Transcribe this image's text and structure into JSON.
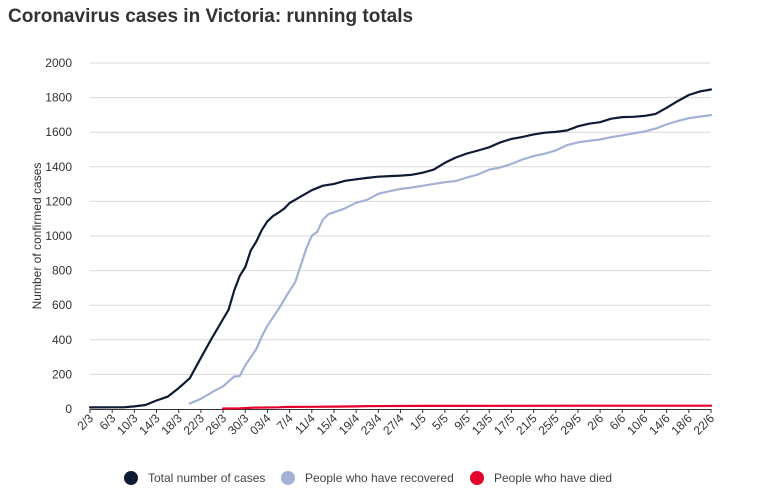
{
  "chart_data": {
    "type": "line",
    "title": "Coronavirus cases in Victoria: running totals",
    "xlabel": "",
    "ylabel": "Number of confirmed cases",
    "ylim": [
      0,
      2000
    ],
    "yticks": [
      0,
      200,
      400,
      600,
      800,
      1000,
      1200,
      1400,
      1600,
      1800,
      2000
    ],
    "xlim": [
      "2/3",
      "22/6"
    ],
    "x_ticks": [
      "2/3",
      "6/3",
      "10/3",
      "14/3",
      "18/3",
      "22/3",
      "26/3",
      "30/3",
      "03/4",
      "7/4",
      "11/4",
      "15/4",
      "19/4",
      "23/4",
      "27/4",
      "1/5",
      "5/5",
      "9/5",
      "13/5",
      "17/5",
      "21/5",
      "25/5",
      "29/5",
      "2/6",
      "6/6",
      "10/6",
      "14/6",
      "18/6",
      "22/6"
    ],
    "grid": true,
    "legend_position": "bottom",
    "series": [
      {
        "name": "Total number of cases",
        "color": "#0f1a33",
        "points": [
          [
            "2/3",
            9
          ],
          [
            "6/3",
            10
          ],
          [
            "8/3",
            10
          ],
          [
            "10/3",
            15
          ],
          [
            "12/3",
            23
          ],
          [
            "14/3",
            49
          ],
          [
            "16/3",
            71
          ],
          [
            "18/3",
            121
          ],
          [
            "20/3",
            178
          ],
          [
            "22/3",
            296
          ],
          [
            "24/3",
            411
          ],
          [
            "26/3",
            520
          ],
          [
            "27/3",
            574
          ],
          [
            "28/3",
            685
          ],
          [
            "29/3",
            769
          ],
          [
            "30/3",
            821
          ],
          [
            "31/3",
            917
          ],
          [
            "1/4",
            968
          ],
          [
            "2/4",
            1036
          ],
          [
            "03/4",
            1085
          ],
          [
            "4/4",
            1115
          ],
          [
            "5/4",
            1135
          ],
          [
            "6/4",
            1158
          ],
          [
            "7/4",
            1191
          ],
          [
            "9/4",
            1228
          ],
          [
            "11/4",
            1265
          ],
          [
            "13/4",
            1291
          ],
          [
            "15/4",
            1301
          ],
          [
            "17/4",
            1319
          ],
          [
            "19/4",
            1328
          ],
          [
            "21/4",
            1336
          ],
          [
            "23/4",
            1343
          ],
          [
            "25/4",
            1346
          ],
          [
            "27/4",
            1349
          ],
          [
            "29/4",
            1354
          ],
          [
            "1/5",
            1366
          ],
          [
            "3/5",
            1384
          ],
          [
            "5/5",
            1423
          ],
          [
            "7/5",
            1454
          ],
          [
            "9/5",
            1477
          ],
          [
            "11/5",
            1494
          ],
          [
            "13/5",
            1513
          ],
          [
            "15/5",
            1541
          ],
          [
            "17/5",
            1561
          ],
          [
            "19/5",
            1573
          ],
          [
            "21/5",
            1587
          ],
          [
            "23/5",
            1597
          ],
          [
            "25/5",
            1602
          ],
          [
            "27/5",
            1610
          ],
          [
            "29/5",
            1634
          ],
          [
            "31/5",
            1649
          ],
          [
            "2/6",
            1658
          ],
          [
            "4/6",
            1678
          ],
          [
            "6/6",
            1687
          ],
          [
            "8/6",
            1689
          ],
          [
            "10/6",
            1694
          ],
          [
            "12/6",
            1706
          ],
          [
            "14/6",
            1741
          ],
          [
            "16/6",
            1780
          ],
          [
            "18/6",
            1815
          ],
          [
            "20/6",
            1836
          ],
          [
            "22/6",
            1847
          ]
        ]
      },
      {
        "name": "People who have recovered",
        "color": "#a3b1d5",
        "points": [
          [
            "20/3",
            32
          ],
          [
            "22/3",
            59
          ],
          [
            "24/3",
            97
          ],
          [
            "26/3",
            131
          ],
          [
            "28/3",
            188
          ],
          [
            "29/3",
            190
          ],
          [
            "30/3",
            253
          ],
          [
            "1/4",
            346
          ],
          [
            "2/4",
            420
          ],
          [
            "03/4",
            481
          ],
          [
            "5/4",
            577
          ],
          [
            "7/4",
            683
          ],
          [
            "8/4",
            733
          ],
          [
            "9/4",
            829
          ],
          [
            "10/4",
            926
          ],
          [
            "11/4",
            1001
          ],
          [
            "12/4",
            1025
          ],
          [
            "13/4",
            1095
          ],
          [
            "14/4",
            1126
          ],
          [
            "15/4",
            1137
          ],
          [
            "17/4",
            1160
          ],
          [
            "19/4",
            1192
          ],
          [
            "21/4",
            1209
          ],
          [
            "23/4",
            1244
          ],
          [
            "25/4",
            1259
          ],
          [
            "27/4",
            1272
          ],
          [
            "29/4",
            1280
          ],
          [
            "1/5",
            1290
          ],
          [
            "3/5",
            1301
          ],
          [
            "5/5",
            1311
          ],
          [
            "7/5",
            1318
          ],
          [
            "9/5",
            1338
          ],
          [
            "11/5",
            1356
          ],
          [
            "13/5",
            1384
          ],
          [
            "15/5",
            1396
          ],
          [
            "17/5",
            1417
          ],
          [
            "19/5",
            1442
          ],
          [
            "21/5",
            1462
          ],
          [
            "23/5",
            1476
          ],
          [
            "25/5",
            1495
          ],
          [
            "27/5",
            1525
          ],
          [
            "29/5",
            1541
          ],
          [
            "31/5",
            1550
          ],
          [
            "2/6",
            1558
          ],
          [
            "4/6",
            1571
          ],
          [
            "6/6",
            1582
          ],
          [
            "8/6",
            1593
          ],
          [
            "10/6",
            1604
          ],
          [
            "12/6",
            1621
          ],
          [
            "14/6",
            1645
          ],
          [
            "16/6",
            1665
          ],
          [
            "18/6",
            1681
          ],
          [
            "20/6",
            1690
          ],
          [
            "22/6",
            1699
          ]
        ]
      },
      {
        "name": "People who have died",
        "color": "#e4002b",
        "points": [
          [
            "26/3",
            3
          ],
          [
            "29/3",
            4
          ],
          [
            "1/4",
            8
          ],
          [
            "5/4",
            10
          ],
          [
            "7/4",
            12
          ],
          [
            "11/4",
            13
          ],
          [
            "15/4",
            14
          ],
          [
            "19/4",
            15
          ],
          [
            "21/4",
            17
          ],
          [
            "1/5",
            18
          ],
          [
            "1/6",
            19
          ],
          [
            "22/6",
            19
          ]
        ]
      }
    ]
  }
}
